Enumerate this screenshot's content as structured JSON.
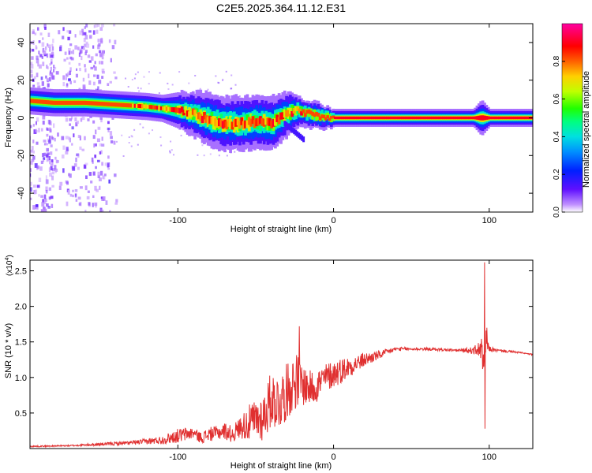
{
  "title": "C2E5.2025.364.11.12.E31",
  "chart_data": [
    {
      "type": "heatmap",
      "name": "spectrogram",
      "xlabel": "Height of straight line (km)",
      "ylabel": "Frequency (Hz)",
      "xlim": [
        -195,
        128
      ],
      "ylim": [
        -50,
        50
      ],
      "xticks": [
        -100,
        0,
        100
      ],
      "xtick_labels": [
        "-100",
        "0",
        "100"
      ],
      "yticks": [
        -40,
        -20,
        0,
        20,
        40
      ],
      "ytick_labels": [
        "-40",
        "-20",
        "0",
        "20",
        "40"
      ],
      "colorbar": {
        "label": "Normalized spectral amplitude",
        "range": [
          0,
          1
        ],
        "ticks": [
          0,
          0.2,
          0.4,
          0.6,
          0.8
        ],
        "tick_labels": [
          "0.0",
          "0.2",
          "0.4",
          "0.6",
          "0.8"
        ],
        "colormap": [
          "#ffffff",
          "#b060ff",
          "#4000ff",
          "#0040ff",
          "#00c0ff",
          "#00ff80",
          "#20ff00",
          "#ffff00",
          "#ff8000",
          "#ff0000",
          "#ff00a0"
        ]
      },
      "ridge": {
        "x": [
          -195,
          -180,
          -160,
          -140,
          -120,
          -110,
          -100,
          -90,
          -80,
          -70,
          -60,
          -50,
          -40,
          -30,
          -25,
          -20,
          -10,
          0,
          20,
          50,
          90,
          95,
          100,
          128
        ],
        "y": [
          9,
          8,
          8,
          7,
          6,
          5,
          4,
          2,
          -1,
          -3,
          -3,
          -2,
          -3,
          2,
          4,
          3,
          1,
          0,
          0,
          0,
          0,
          0,
          0,
          0
        ],
        "width_hz": [
          3,
          3,
          3,
          3,
          3,
          3,
          4,
          5,
          6,
          6,
          6,
          6,
          6,
          5,
          4,
          3,
          3,
          2,
          2,
          2,
          2,
          4,
          2,
          2
        ]
      }
    },
    {
      "type": "line",
      "name": "snr",
      "xlabel": "Height of straight line (km)",
      "ylabel": "SNR (10 * v/v)",
      "multiplier_label": "(x10",
      "multiplier_exp": "4",
      "multiplier_close": ")",
      "xlim": [
        -195,
        128
      ],
      "ylim": [
        0,
        2.65
      ],
      "xticks": [
        -100,
        0,
        100
      ],
      "xtick_labels": [
        "-100",
        "0",
        "100"
      ],
      "yticks": [
        0.5,
        1.0,
        1.5,
        2.0,
        2.5
      ],
      "ytick_labels": [
        "0.5",
        "1.0",
        "1.5",
        "2.0",
        "2.5"
      ],
      "color": "#e03030",
      "series": [
        {
          "name": "SNR",
          "x": [
            -195,
            -170,
            -150,
            -130,
            -120,
            -110,
            -100,
            -95,
            -90,
            -85,
            -80,
            -75,
            -70,
            -65,
            -60,
            -55,
            -50,
            -45,
            -40,
            -35,
            -30,
            -25,
            -22,
            -20,
            -15,
            -10,
            -5,
            0,
            5,
            10,
            15,
            20,
            30,
            40,
            50,
            60,
            70,
            80,
            90,
            95,
            97,
            98,
            99,
            100,
            105,
            110,
            120,
            128
          ],
          "y": [
            0.03,
            0.04,
            0.06,
            0.08,
            0.1,
            0.12,
            0.18,
            0.2,
            0.22,
            0.15,
            0.2,
            0.22,
            0.25,
            0.2,
            0.3,
            0.35,
            0.4,
            0.45,
            0.7,
            0.65,
            0.8,
            0.95,
            0.95,
            0.9,
            0.85,
            0.9,
            1.0,
            1.05,
            1.1,
            1.15,
            1.2,
            1.25,
            1.32,
            1.4,
            1.4,
            1.4,
            1.39,
            1.38,
            1.38,
            1.4,
            1.0,
            1.6,
            1.45,
            1.4,
            1.38,
            1.37,
            1.35,
            1.32
          ],
          "noise": [
            0.01,
            0.01,
            0.02,
            0.03,
            0.04,
            0.06,
            0.1,
            0.1,
            0.08,
            0.08,
            0.1,
            0.1,
            0.12,
            0.12,
            0.15,
            0.25,
            0.3,
            0.35,
            0.4,
            0.4,
            0.4,
            0.4,
            0.4,
            0.3,
            0.25,
            0.25,
            0.2,
            0.2,
            0.18,
            0.15,
            0.12,
            0.1,
            0.06,
            0.03,
            0.02,
            0.02,
            0.02,
            0.02,
            0.05,
            0.15,
            0.3,
            0.25,
            0.1,
            0.04,
            0.02,
            0.02,
            0.01,
            0.01
          ]
        }
      ],
      "peaks": [
        {
          "x": -22,
          "y": 1.72
        },
        {
          "x": 97,
          "y": 2.62
        },
        {
          "x": 97.3,
          "y": 0.28
        }
      ]
    }
  ]
}
